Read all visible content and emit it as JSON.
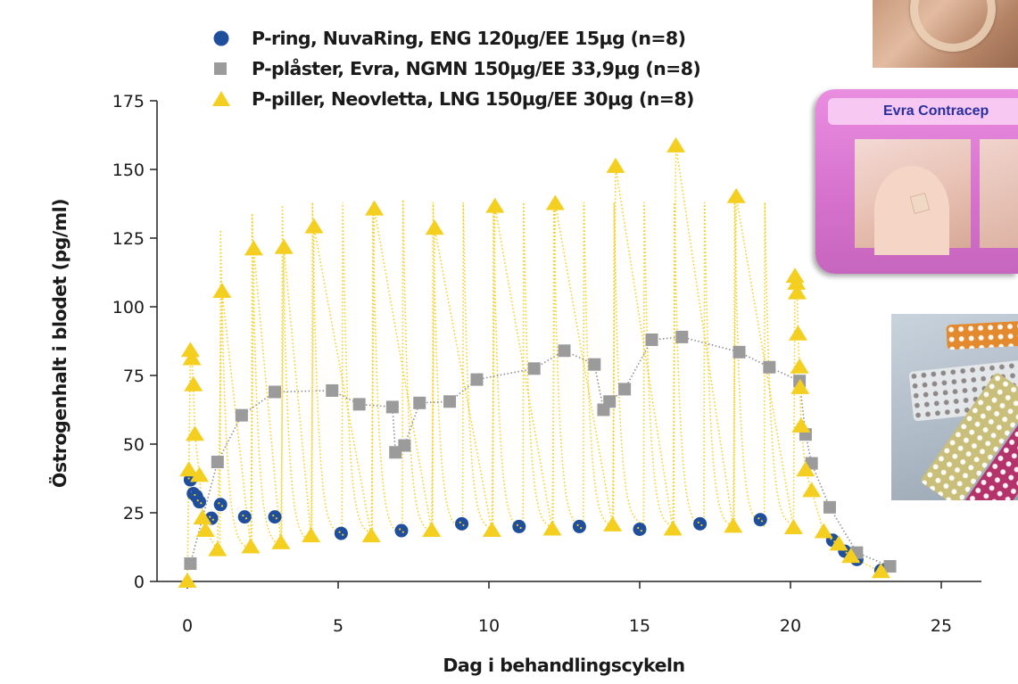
{
  "chart_data": {
    "type": "scatter",
    "xlabel": "Dag i behandlingscykeln",
    "ylabel": "Östrogenhalt  i blodet (pg/ml)",
    "xlim": [
      0,
      26.5
    ],
    "ylim": [
      0,
      175
    ],
    "xticks": [
      0,
      5,
      10,
      15,
      20,
      25
    ],
    "yticks": [
      0,
      25,
      50,
      75,
      100,
      125,
      150,
      175
    ],
    "grid": false,
    "legend_position": "top",
    "series": [
      {
        "name": "P-ring, NuvaRing, ENG 120µg/EE 15µg (n=8)",
        "marker": "circle",
        "color": "#1f4e9c",
        "connect": false,
        "points": [
          [
            0.1,
            37
          ],
          [
            0.2,
            32
          ],
          [
            0.3,
            31
          ],
          [
            0.4,
            29
          ],
          [
            0.8,
            23
          ],
          [
            1.1,
            28
          ],
          [
            1.9,
            23.5
          ],
          [
            2.9,
            23.5
          ],
          [
            5.1,
            17.5
          ],
          [
            7.1,
            18.5
          ],
          [
            9.1,
            21
          ],
          [
            11.0,
            20
          ],
          [
            13.0,
            20
          ],
          [
            15.0,
            19
          ],
          [
            17.0,
            21
          ],
          [
            19.0,
            22.5
          ],
          [
            21.4,
            15
          ],
          [
            21.8,
            11
          ],
          [
            22.2,
            8
          ],
          [
            23.0,
            4
          ]
        ]
      },
      {
        "name": "P-plåster, Evra, NGMN 150µg/EE 33,9µg (n=8)",
        "marker": "square",
        "color": "#9b9b9b",
        "connect": true,
        "points": [
          [
            0.1,
            6.5
          ],
          [
            1.0,
            43.5
          ],
          [
            1.8,
            60.5
          ],
          [
            2.9,
            69
          ],
          [
            4.8,
            69.5
          ],
          [
            5.7,
            64.5
          ],
          [
            6.8,
            63.5
          ],
          [
            6.9,
            47
          ],
          [
            7.2,
            49.5
          ],
          [
            7.7,
            65
          ],
          [
            8.7,
            65.5
          ],
          [
            9.6,
            73.5
          ],
          [
            11.5,
            77.5
          ],
          [
            12.5,
            84
          ],
          [
            13.5,
            79
          ],
          [
            13.8,
            62.5
          ],
          [
            14.0,
            65.5
          ],
          [
            14.5,
            70
          ],
          [
            15.4,
            88
          ],
          [
            16.4,
            89
          ],
          [
            18.3,
            83.5
          ],
          [
            19.3,
            78
          ],
          [
            20.3,
            73
          ],
          [
            20.5,
            53.5
          ],
          [
            20.7,
            43
          ],
          [
            21.3,
            27
          ],
          [
            22.2,
            10.5
          ],
          [
            23.3,
            5.5
          ]
        ]
      },
      {
        "name": "P-piller, Neovletta, LNG 150µg/EE 30µg (n=8)",
        "marker": "triangle",
        "color": "#f5cf1f",
        "connect": true,
        "points": [
          [
            0.0,
            0
          ],
          [
            0.05,
            40.5
          ],
          [
            0.1,
            84
          ],
          [
            0.15,
            81
          ],
          [
            0.2,
            71.5
          ],
          [
            0.25,
            53.5
          ],
          [
            0.4,
            38.5
          ],
          [
            0.5,
            23
          ],
          [
            0.6,
            18.5
          ],
          [
            1.0,
            11.5
          ],
          [
            1.15,
            105.5
          ],
          [
            2.1,
            12.5
          ],
          [
            2.2,
            121
          ],
          [
            3.1,
            14
          ],
          [
            3.2,
            121.5
          ],
          [
            4.1,
            16.5
          ],
          [
            4.2,
            129
          ],
          [
            6.1,
            16.5
          ],
          [
            6.2,
            135.5
          ],
          [
            8.1,
            18.5
          ],
          [
            8.2,
            128.5
          ],
          [
            10.1,
            18.5
          ],
          [
            10.2,
            136.5
          ],
          [
            12.1,
            19
          ],
          [
            12.2,
            137.5
          ],
          [
            14.1,
            20.5
          ],
          [
            14.2,
            151
          ],
          [
            16.1,
            19
          ],
          [
            16.2,
            158.5
          ],
          [
            18.1,
            20
          ],
          [
            18.2,
            140
          ],
          [
            20.1,
            19.5
          ],
          [
            20.15,
            111
          ],
          [
            20.2,
            108.5
          ],
          [
            20.22,
            105
          ],
          [
            20.25,
            90
          ],
          [
            20.3,
            78
          ],
          [
            20.32,
            70.5
          ],
          [
            20.35,
            56.5
          ],
          [
            20.5,
            40.5
          ],
          [
            20.7,
            33
          ],
          [
            21.1,
            18
          ],
          [
            21.6,
            13.5
          ],
          [
            22.0,
            9
          ],
          [
            23.0,
            3.5
          ]
        ]
      }
    ],
    "spikes": [
      {
        "x": 1.1,
        "peak": 128,
        "trough": 11.5
      },
      {
        "x": 2.15,
        "peak": 134,
        "trough": 12.5
      },
      {
        "x": 3.15,
        "peak": 137,
        "trough": 14
      },
      {
        "x": 4.15,
        "peak": 138,
        "trough": 16.5
      },
      {
        "x": 5.15,
        "peak": 138,
        "trough": 17
      },
      {
        "x": 6.15,
        "peak": 138,
        "trough": 16.5
      },
      {
        "x": 7.15,
        "peak": 139,
        "trough": 17.5
      },
      {
        "x": 8.15,
        "peak": 138,
        "trough": 18.5
      },
      {
        "x": 9.15,
        "peak": 138,
        "trough": 18.5
      },
      {
        "x": 10.15,
        "peak": 138,
        "trough": 18.5
      },
      {
        "x": 11.15,
        "peak": 138,
        "trough": 19
      },
      {
        "x": 12.15,
        "peak": 138,
        "trough": 19
      },
      {
        "x": 13.15,
        "peak": 138,
        "trough": 19.5
      },
      {
        "x": 14.15,
        "peak": 138,
        "trough": 20.5
      },
      {
        "x": 15.15,
        "peak": 138,
        "trough": 19.5
      },
      {
        "x": 16.15,
        "peak": 138,
        "trough": 19
      },
      {
        "x": 17.15,
        "peak": 138,
        "trough": 19.5
      },
      {
        "x": 18.15,
        "peak": 138,
        "trough": 20
      },
      {
        "x": 19.15,
        "peak": 138,
        "trough": 20
      }
    ]
  },
  "photos": {
    "ring": {
      "icon": "nuvaring-photo"
    },
    "patch": {
      "icon": "evra-patch-photo",
      "title": "Evra Contracep"
    },
    "pills": {
      "icon": "pill-packs-photo"
    }
  }
}
